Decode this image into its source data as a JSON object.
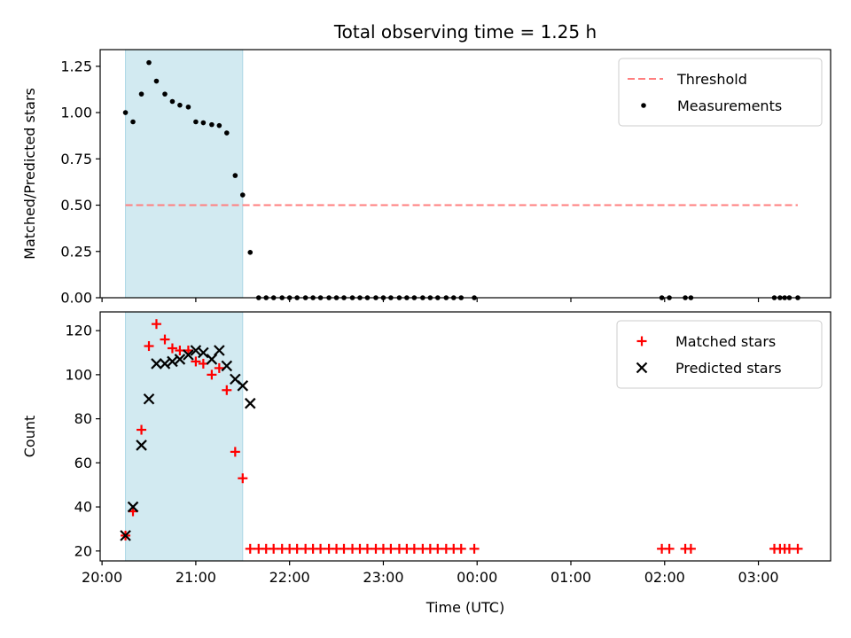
{
  "chart_data": {
    "title": "Total observing time = 1.25 h",
    "xlabel": "Time (UTC)",
    "x_tick_labels": [
      "20:00",
      "21:00",
      "22:00",
      "23:00",
      "00:00",
      "01:00",
      "02:00",
      "03:00"
    ],
    "x_ticks_hours": [
      20,
      21,
      22,
      23,
      24,
      25,
      26,
      27
    ],
    "xlim_hours": [
      19.98,
      27.77
    ],
    "shaded_interval_hours": [
      20.25,
      21.5
    ],
    "colors": {
      "shade": "#add8e6",
      "threshold": "#ff7f7f",
      "measurements": "#000000",
      "matched": "#ff0000",
      "predicted": "#000000"
    },
    "panels": [
      {
        "type": "scatter",
        "ylabel": "Matched/Predicted stars",
        "ylim": [
          0,
          1.34
        ],
        "yticks": [
          0,
          0.25,
          0.5,
          0.75,
          1.0,
          1.25
        ],
        "y_tick_labels": [
          "0.00",
          "0.25",
          "0.50",
          "0.75",
          "1.00",
          "1.25"
        ],
        "legend_position": "upper-right",
        "threshold": {
          "name": "Threshold",
          "value": 0.5,
          "x_range_hours": [
            20.25,
            27.42
          ]
        },
        "series": [
          {
            "name": "Measurements",
            "marker": "dot",
            "points": [
              [
                20.25,
                1.0
              ],
              [
                20.33,
                0.95
              ],
              [
                20.42,
                1.1
              ],
              [
                20.5,
                1.27
              ],
              [
                20.58,
                1.17
              ],
              [
                20.67,
                1.1
              ],
              [
                20.75,
                1.06
              ],
              [
                20.83,
                1.04
              ],
              [
                20.92,
                1.03
              ],
              [
                21.0,
                0.95
              ],
              [
                21.08,
                0.945
              ],
              [
                21.17,
                0.935
              ],
              [
                21.25,
                0.93
              ],
              [
                21.33,
                0.89
              ],
              [
                21.42,
                0.66
              ],
              [
                21.5,
                0.555
              ],
              [
                21.58,
                0.245
              ],
              [
                21.67,
                0
              ],
              [
                21.75,
                0
              ],
              [
                21.83,
                0
              ],
              [
                21.92,
                0
              ],
              [
                22.0,
                0
              ],
              [
                22.08,
                0
              ],
              [
                22.17,
                0
              ],
              [
                22.25,
                0
              ],
              [
                22.33,
                0
              ],
              [
                22.42,
                0
              ],
              [
                22.5,
                0
              ],
              [
                22.58,
                0
              ],
              [
                22.67,
                0
              ],
              [
                22.75,
                0
              ],
              [
                22.83,
                0
              ],
              [
                22.92,
                0
              ],
              [
                23.0,
                0
              ],
              [
                23.08,
                0
              ],
              [
                23.17,
                0
              ],
              [
                23.25,
                0
              ],
              [
                23.33,
                0
              ],
              [
                23.42,
                0
              ],
              [
                23.5,
                0
              ],
              [
                23.58,
                0
              ],
              [
                23.67,
                0
              ],
              [
                23.75,
                0
              ],
              [
                23.83,
                0
              ],
              [
                23.97,
                0
              ],
              [
                25.97,
                0
              ],
              [
                26.05,
                0
              ],
              [
                26.22,
                0
              ],
              [
                26.28,
                0
              ],
              [
                27.17,
                0
              ],
              [
                27.23,
                0
              ],
              [
                27.28,
                0
              ],
              [
                27.33,
                0
              ],
              [
                27.42,
                0
              ]
            ]
          }
        ]
      },
      {
        "type": "scatter",
        "ylabel": "Count",
        "ylim": [
          15.5,
          128.5
        ],
        "yticks": [
          20,
          40,
          60,
          80,
          100,
          120
        ],
        "y_tick_labels": [
          "20",
          "40",
          "60",
          "80",
          "100",
          "120"
        ],
        "legend_position": "upper-right",
        "series": [
          {
            "name": "Matched stars",
            "marker": "plus",
            "points": [
              [
                20.25,
                27
              ],
              [
                20.33,
                38
              ],
              [
                20.42,
                75
              ],
              [
                20.5,
                113
              ],
              [
                20.58,
                123
              ],
              [
                20.67,
                116
              ],
              [
                20.75,
                112
              ],
              [
                20.83,
                111
              ],
              [
                20.92,
                111
              ],
              [
                21.0,
                106
              ],
              [
                21.08,
                105
              ],
              [
                21.17,
                100
              ],
              [
                21.25,
                103
              ],
              [
                21.33,
                93
              ],
              [
                21.42,
                65
              ],
              [
                21.5,
                53
              ],
              [
                21.58,
                21
              ],
              [
                21.67,
                21
              ],
              [
                21.75,
                21
              ],
              [
                21.83,
                21
              ],
              [
                21.92,
                21
              ],
              [
                22.0,
                21
              ],
              [
                22.08,
                21
              ],
              [
                22.17,
                21
              ],
              [
                22.25,
                21
              ],
              [
                22.33,
                21
              ],
              [
                22.42,
                21
              ],
              [
                22.5,
                21
              ],
              [
                22.58,
                21
              ],
              [
                22.67,
                21
              ],
              [
                22.75,
                21
              ],
              [
                22.83,
                21
              ],
              [
                22.92,
                21
              ],
              [
                23.0,
                21
              ],
              [
                23.08,
                21
              ],
              [
                23.17,
                21
              ],
              [
                23.25,
                21
              ],
              [
                23.33,
                21
              ],
              [
                23.42,
                21
              ],
              [
                23.5,
                21
              ],
              [
                23.58,
                21
              ],
              [
                23.67,
                21
              ],
              [
                23.75,
                21
              ],
              [
                23.83,
                21
              ],
              [
                23.97,
                21
              ],
              [
                25.97,
                21
              ],
              [
                26.05,
                21
              ],
              [
                26.22,
                21
              ],
              [
                26.28,
                21
              ],
              [
                27.17,
                21
              ],
              [
                27.23,
                21
              ],
              [
                27.28,
                21
              ],
              [
                27.33,
                21
              ],
              [
                27.42,
                21
              ]
            ]
          },
          {
            "name": "Predicted stars",
            "marker": "x",
            "points": [
              [
                20.25,
                27
              ],
              [
                20.33,
                40
              ],
              [
                20.42,
                68
              ],
              [
                20.5,
                89
              ],
              [
                20.58,
                105
              ],
              [
                20.67,
                105
              ],
              [
                20.75,
                106
              ],
              [
                20.83,
                107
              ],
              [
                20.92,
                109
              ],
              [
                21.0,
                111
              ],
              [
                21.08,
                110
              ],
              [
                21.17,
                107
              ],
              [
                21.25,
                111
              ],
              [
                21.33,
                104
              ],
              [
                21.42,
                98
              ],
              [
                21.5,
                95
              ],
              [
                21.58,
                87
              ]
            ]
          }
        ]
      }
    ]
  }
}
